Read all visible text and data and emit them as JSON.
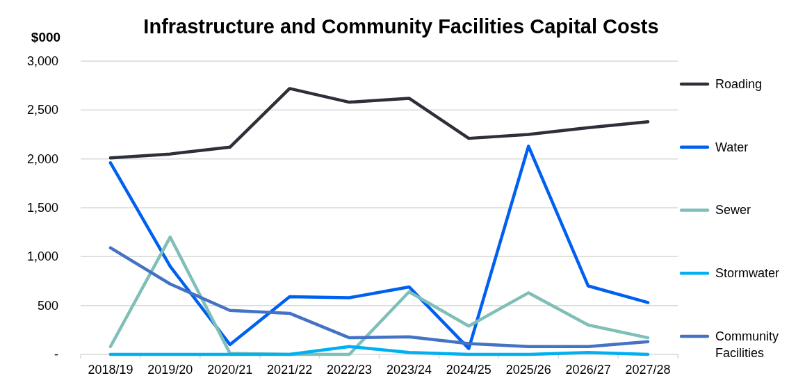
{
  "chart_data": {
    "type": "line",
    "title": "Infrastructure and Community Facilities Capital Costs",
    "ylabel": "$000",
    "categories": [
      "2018/19",
      "2019/20",
      "2020/21",
      "2021/22",
      "2022/23",
      "2023/24",
      "2024/25",
      "2025/26",
      "2026/27",
      "2027/28"
    ],
    "series": [
      {
        "name": "Roading",
        "color": "#2d3039",
        "values": [
          2010,
          2050,
          2120,
          2720,
          2580,
          2620,
          2210,
          2250,
          2320,
          2380
        ]
      },
      {
        "name": "Water",
        "color": "#0060f0",
        "values": [
          1960,
          900,
          100,
          590,
          580,
          690,
          60,
          2130,
          700,
          530
        ]
      },
      {
        "name": "Sewer",
        "color": "#7fbfb8",
        "values": [
          80,
          1200,
          10,
          0,
          0,
          640,
          290,
          630,
          300,
          170
        ]
      },
      {
        "name": "Stormwater",
        "color": "#00b0f0",
        "values": [
          0,
          0,
          0,
          0,
          80,
          20,
          0,
          0,
          20,
          0
        ]
      },
      {
        "name": "Community Facilities",
        "color": "#4472c4",
        "values": [
          1090,
          720,
          450,
          420,
          170,
          180,
          110,
          80,
          80,
          130
        ]
      }
    ],
    "ylim": [
      0,
      3000
    ],
    "yticks": [
      {
        "value": 0,
        "label": "-"
      },
      {
        "value": 500,
        "label": "500"
      },
      {
        "value": 1000,
        "label": "1,000"
      },
      {
        "value": 1500,
        "label": "1,500"
      },
      {
        "value": 2000,
        "label": "2,000"
      },
      {
        "value": 2500,
        "label": "2,500"
      },
      {
        "value": 3000,
        "label": "3,000"
      }
    ],
    "grid": "y",
    "legend": "right",
    "marker": "none",
    "line_style": "solid"
  }
}
